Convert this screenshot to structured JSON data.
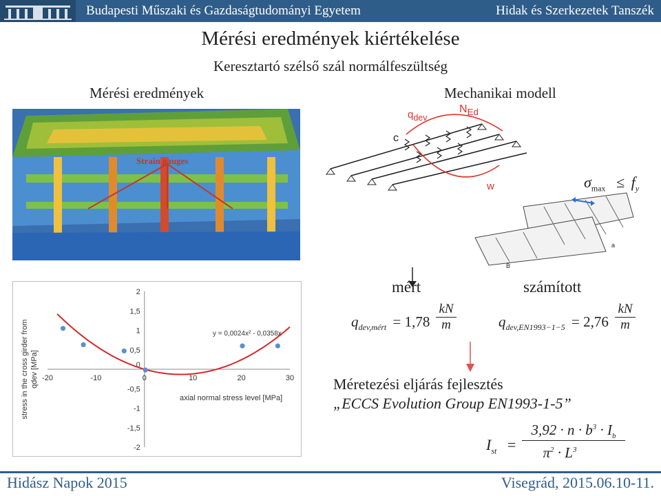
{
  "header": {
    "left": "Budapesti Műszaki és Gazdaságtudományi Egyetem",
    "right": "Hidak és Szerkezetek Tanszék"
  },
  "title": "Mérési eredmények kiértékelése",
  "subtitle": "Keresztartó szélső szál normálfeszültség",
  "left_heading": "Mérési eredmények",
  "right_heading": "Mechanikai modell",
  "photo_label": "Strain gauges",
  "model": {
    "q_label": "q",
    "q_sub": "dev",
    "n_label": "N",
    "n_sub": "Ed",
    "c_label": "c",
    "w_label": "w",
    "a_label": "a",
    "b_label": "B",
    "sigma": "σ",
    "sigma_sub": "max",
    "leq": "≤",
    "f": "f",
    "f_sub": "y"
  },
  "measured": {
    "heading": "mért",
    "q": "q",
    "q_sub": "dev,mért",
    "value": "= 1,78",
    "unit_num": "kN",
    "unit_den": "m"
  },
  "calculated": {
    "heading": "számított",
    "q": "q",
    "q_sub": "dev,EN1993−1−5",
    "value": "= 2,76",
    "unit_num": "kN",
    "unit_den": "m"
  },
  "method": {
    "line1": "Méretezési eljárás fejlesztés",
    "line2": "„ECCS Evolution Group EN1993-1-5”"
  },
  "formula": {
    "lhs": "I",
    "lhs_sub": "st",
    "eq": "=",
    "num": "3,92 · n · b",
    "num_sup": "3",
    "num_tail": " · I",
    "num_tail_sub": "b",
    "den": "π",
    "den_sup": "2",
    "den_mid": " · L",
    "den_sup2": "3"
  },
  "footer": {
    "left": "Hidász Napok 2015",
    "right": "Visegrád, 2015.06.10-11."
  },
  "colors": {
    "brand": "#2f5d8a",
    "curve": "#d62728",
    "points": "#5b8fd0",
    "arrow": "#e05050"
  },
  "chart_data": {
    "type": "scatter",
    "ylabel": "stress in the cross girder from qdev [MPa]",
    "xlabel": "axial normal stress level [MPa]",
    "trendline_label": "y = 0,0024x² - 0,0358x",
    "xlim": [
      -20,
      30
    ],
    "ylim": [
      -2,
      2
    ],
    "x_ticks": [
      "-20",
      "-10",
      "0",
      "10",
      "20",
      "30"
    ],
    "y_ticks": [
      "2",
      "1,5",
      "1",
      "0,5",
      "0",
      "-0,5",
      "-1",
      "-1,5",
      "-2"
    ],
    "points": [
      {
        "x": -16.8,
        "y": 1.05
      },
      {
        "x": -12.6,
        "y": 0.63
      },
      {
        "x": -4.2,
        "y": 0.47
      },
      {
        "x": 0.2,
        "y": -0.02
      },
      {
        "x": 20.2,
        "y": 0.6
      },
      {
        "x": 27.5,
        "y": 0.6
      }
    ],
    "trendline": {
      "a": 0.0024,
      "b": -0.0358,
      "c": 0
    }
  }
}
